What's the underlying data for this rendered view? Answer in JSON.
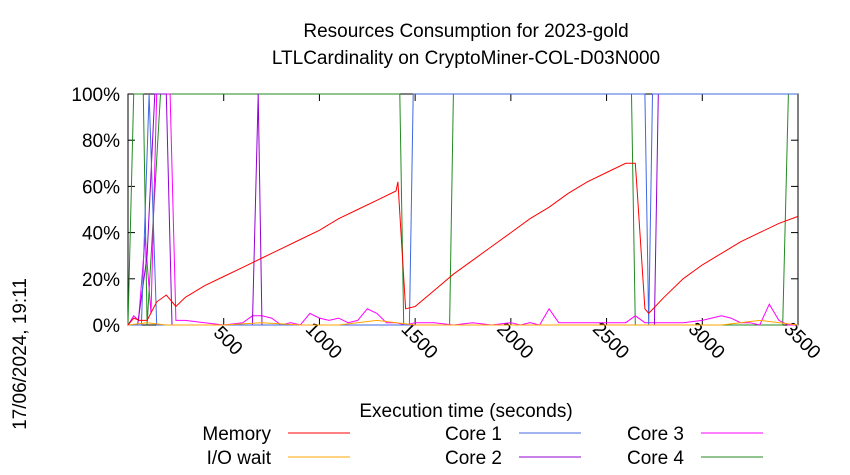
{
  "chart_data": {
    "type": "line",
    "title": "Resources Consumption for 2023-gold",
    "subtitle": "LTLCardinality on CryptoMiner-COL-D03N000",
    "xlabel": "Execution time (seconds)",
    "ylabel": "",
    "side_label": "17/06/2024, 19:11",
    "xlim": [
      0,
      3500
    ],
    "ylim": [
      0,
      100
    ],
    "x_ticks": [
      500,
      1000,
      1500,
      2000,
      2500,
      3000,
      3500
    ],
    "y_ticks": [
      0,
      20,
      40,
      60,
      80,
      100
    ],
    "y_tick_labels": [
      "0%",
      "20%",
      "40%",
      "60%",
      "80%",
      "100%"
    ],
    "grid": false,
    "legend_position": "bottom",
    "series": [
      {
        "name": "Memory",
        "color": "#ff0000",
        "x": [
          0,
          30,
          60,
          100,
          150,
          200,
          250,
          300,
          400,
          500,
          600,
          700,
          800,
          900,
          1000,
          1100,
          1200,
          1300,
          1400,
          1410,
          1450,
          1500,
          1600,
          1700,
          1800,
          1900,
          2000,
          2100,
          2200,
          2300,
          2400,
          2500,
          2600,
          2650,
          2660,
          2700,
          2720,
          2800,
          2900,
          3000,
          3100,
          3200,
          3300,
          3400,
          3500
        ],
        "values": [
          0,
          3,
          2,
          2,
          10,
          13,
          8,
          12,
          17,
          21,
          25,
          29,
          33,
          37,
          41,
          46,
          50,
          54,
          58,
          62,
          7,
          8,
          15,
          22,
          28,
          34,
          40,
          46,
          51,
          57,
          62,
          66,
          70,
          70,
          58,
          7,
          5,
          12,
          20,
          26,
          31,
          36,
          40,
          44,
          47
        ]
      },
      {
        "name": "I/O wait",
        "color": "#ffa500",
        "x": [
          0,
          100,
          200,
          300,
          500,
          700,
          900,
          1100,
          1300,
          1500,
          1700,
          1900,
          2100,
          2300,
          2500,
          2700,
          2900,
          3100,
          3300,
          3500
        ],
        "values": [
          0,
          1,
          0,
          0,
          0,
          1,
          0,
          0,
          2,
          0,
          0,
          0,
          0,
          0,
          0,
          0,
          0,
          0,
          2,
          0
        ]
      },
      {
        "name": "Core 1",
        "color": "#4169e1",
        "x": [
          0,
          70,
          110,
          150,
          1470,
          1490,
          2700,
          2720,
          2740,
          3500
        ],
        "values": [
          0,
          0,
          100,
          0,
          0,
          100,
          100,
          0,
          100,
          100
        ]
      },
      {
        "name": "Core 2",
        "color": "#9400d3",
        "x": [
          0,
          50,
          100,
          140,
          200,
          230,
          350,
          350,
          650,
          680,
          700,
          1650,
          1680,
          1700,
          2750,
          2770,
          2790,
          3500
        ],
        "values": [
          0,
          0,
          30,
          100,
          100,
          0,
          0,
          0,
          0,
          100,
          0,
          0,
          0,
          0,
          0,
          100,
          100,
          100
        ]
      },
      {
        "name": "Core 3",
        "color": "#ff00ff",
        "x": [
          0,
          30,
          55,
          90,
          120,
          150,
          180,
          220,
          250,
          300,
          400,
          500,
          600,
          650,
          700,
          750,
          800,
          850,
          900,
          950,
          1000,
          1050,
          1100,
          1150,
          1200,
          1250,
          1300,
          1350,
          1400,
          1450,
          1500,
          1600,
          1700,
          1800,
          1900,
          2000,
          2050,
          2100,
          2150,
          2200,
          2250,
          2300,
          2400,
          2500,
          2600,
          2650,
          2700,
          2800,
          2900,
          3000,
          3100,
          3150,
          3200,
          3250,
          3300,
          3350,
          3400,
          3450,
          3500
        ],
        "values": [
          0,
          4,
          2,
          38,
          5,
          100,
          100,
          100,
          2,
          2,
          1,
          0,
          1,
          4,
          4,
          3,
          0,
          1,
          0,
          5,
          3,
          2,
          3,
          1,
          2,
          7,
          5,
          1,
          1,
          0,
          1,
          1,
          0,
          1,
          0,
          1,
          0,
          1,
          0,
          7,
          1,
          1,
          1,
          1,
          1,
          4,
          1,
          1,
          1,
          2,
          4,
          3,
          1,
          1,
          0,
          9,
          2,
          0,
          0
        ]
      },
      {
        "name": "Core 4",
        "color": "#228b22",
        "x": [
          0,
          30,
          80,
          100,
          170,
          230,
          700,
          720,
          1420,
          1440,
          1680,
          1700,
          1720,
          2630,
          2650,
          3420,
          3450,
          3500
        ],
        "values": [
          0,
          100,
          100,
          0,
          100,
          100,
          100,
          100,
          100,
          0,
          0,
          100,
          100,
          100,
          0,
          0,
          100,
          100
        ]
      }
    ]
  }
}
